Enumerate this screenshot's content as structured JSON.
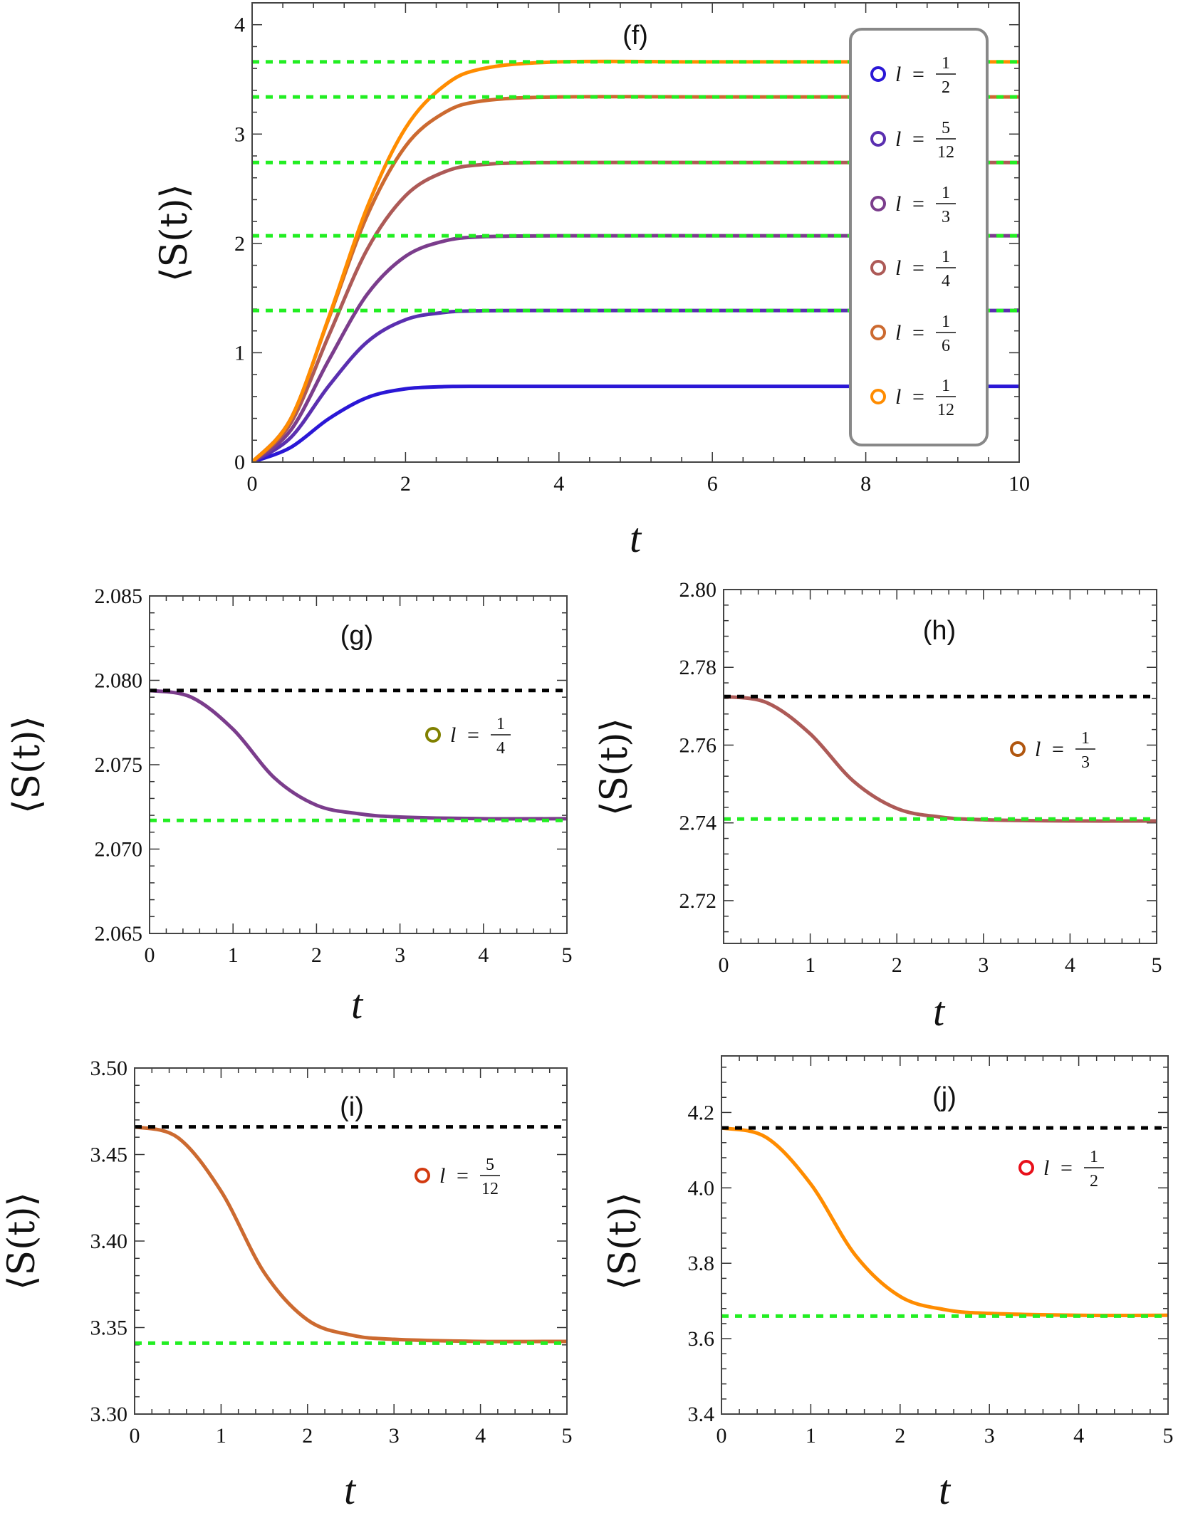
{
  "chart_data": [
    {
      "type": "line",
      "title": "(f)",
      "xlabel": "t",
      "ylabel": "⟨S(t)⟩",
      "xlim": [
        0,
        10
      ],
      "ylim": [
        0,
        4.2
      ],
      "xticks": [
        "0",
        "2",
        "4",
        "6",
        "8",
        "10"
      ],
      "yticks": [
        "0",
        "1",
        "2",
        "3",
        "4"
      ],
      "legend_placement": "right",
      "series": [
        {
          "name": "l = 1/2",
          "num": "1",
          "den": "2",
          "color": "#2a17d6",
          "x": [
            0,
            0.5,
            1,
            1.5,
            2,
            2.5,
            3,
            4,
            6,
            8,
            10
          ],
          "y": [
            0,
            0.133,
            0.397,
            0.59,
            0.67,
            0.69,
            0.693,
            0.693,
            0.693,
            0.693,
            0.693
          ]
        },
        {
          "name": "l = 5/12",
          "num": "5",
          "den": "12",
          "color": "#5a2fb0",
          "x": [
            0,
            0.5,
            1,
            1.5,
            2,
            2.5,
            3,
            4,
            6,
            8,
            10
          ],
          "y": [
            0,
            0.222,
            0.697,
            1.099,
            1.302,
            1.368,
            1.384,
            1.386,
            1.386,
            1.386,
            1.386
          ]
        },
        {
          "name": "l = 1/3",
          "num": "1",
          "den": "3",
          "color": "#7b3d8c",
          "x": [
            0,
            0.5,
            1,
            1.5,
            2,
            2.5,
            3,
            4,
            6,
            8,
            10
          ],
          "y": [
            0,
            0.288,
            0.934,
            1.534,
            1.882,
            2.021,
            2.061,
            2.07,
            2.07,
            2.07,
            2.07
          ]
        },
        {
          "name": "l = 1/4",
          "num": "1",
          "den": "4",
          "color": "#ad5a57",
          "x": [
            0,
            0.5,
            1,
            1.5,
            2,
            2.5,
            3,
            4,
            6,
            8,
            10
          ],
          "y": [
            0,
            0.352,
            1.159,
            1.945,
            2.436,
            2.652,
            2.721,
            2.74,
            2.74,
            2.74,
            2.74
          ]
        },
        {
          "name": "l = 1/6",
          "num": "1",
          "den": "6",
          "color": "#cc6a30",
          "x": [
            0,
            0.5,
            1,
            1.5,
            2,
            2.5,
            3,
            4,
            6,
            8,
            10
          ],
          "y": [
            0,
            0.392,
            1.314,
            2.255,
            2.889,
            3.193,
            3.303,
            3.34,
            3.34,
            3.34,
            3.34
          ]
        },
        {
          "name": "l = 1/12",
          "num": "1",
          "den": "12",
          "color": "#ff8c00",
          "x": [
            0,
            0.5,
            1,
            1.5,
            2,
            2.5,
            3,
            4,
            6,
            8,
            10
          ],
          "y": [
            0,
            0.389,
            1.326,
            2.331,
            3.055,
            3.44,
            3.597,
            3.66,
            3.66,
            3.66,
            3.66
          ]
        }
      ],
      "hlines": [
        {
          "y": 3.66,
          "color": "#22ee22",
          "style": "dashed"
        },
        {
          "y": 3.34,
          "color": "#22ee22",
          "style": "dashed"
        },
        {
          "y": 2.74,
          "color": "#22ee22",
          "style": "dashed"
        },
        {
          "y": 2.07,
          "color": "#22ee22",
          "style": "dashed"
        },
        {
          "y": 1.386,
          "color": "#22ee22",
          "style": "dashed"
        }
      ]
    },
    {
      "type": "line",
      "title": "(g)",
      "xlabel": "t",
      "ylabel": "⟨S(t)⟩",
      "xlim": [
        0,
        5
      ],
      "ylim": [
        2.065,
        2.085
      ],
      "xticks": [
        "0",
        "1",
        "2",
        "3",
        "4",
        "5"
      ],
      "yticks": [
        "2.065",
        "2.070",
        "2.075",
        "2.080",
        "2.085"
      ],
      "legend": [
        {
          "num": "1",
          "den": "4",
          "color": "#808000"
        }
      ],
      "series": [
        {
          "color": "#7b3d8c",
          "x": [
            0,
            0.5,
            1,
            1.5,
            2,
            2.5,
            3,
            4,
            5
          ],
          "y": [
            2.0794,
            2.079,
            2.0771,
            2.0742,
            2.0726,
            2.0721,
            2.0719,
            2.0718,
            2.0718
          ]
        }
      ],
      "hlines": [
        {
          "y": 2.0794,
          "color": "#000000",
          "style": "dashed"
        },
        {
          "y": 2.0717,
          "color": "#22ee22",
          "style": "dashed"
        }
      ]
    },
    {
      "type": "line",
      "title": "(h)",
      "xlabel": "t",
      "ylabel": "⟨S(t)⟩",
      "xlim": [
        0,
        5
      ],
      "ylim": [
        2.709,
        2.8
      ],
      "xticks": [
        "0",
        "1",
        "2",
        "3",
        "4",
        "5"
      ],
      "yticks": [
        "2.72",
        "2.74",
        "2.76",
        "2.78",
        "2.80"
      ],
      "legend": [
        {
          "num": "1",
          "den": "3",
          "color": "#b0560f"
        }
      ],
      "series": [
        {
          "color": "#ad5a57",
          "x": [
            0,
            0.5,
            1,
            1.5,
            2,
            2.5,
            3,
            4,
            5
          ],
          "y": [
            2.7725,
            2.7709,
            2.7629,
            2.7507,
            2.7437,
            2.7415,
            2.7408,
            2.7405,
            2.7405
          ]
        }
      ],
      "hlines": [
        {
          "y": 2.7725,
          "color": "#000000",
          "style": "dashed"
        },
        {
          "y": 2.741,
          "color": "#22ee22",
          "style": "dashed"
        }
      ]
    },
    {
      "type": "line",
      "title": "(i)",
      "xlabel": "t",
      "ylabel": "⟨S(t)⟩",
      "xlim": [
        0,
        5
      ],
      "ylim": [
        3.3,
        3.5
      ],
      "xticks": [
        "0",
        "1",
        "2",
        "3",
        "4",
        "5"
      ],
      "yticks": [
        "3.30",
        "3.35",
        "3.40",
        "3.45",
        "3.50"
      ],
      "legend": [
        {
          "num": "5",
          "den": "12",
          "color": "#d23a10"
        }
      ],
      "series": [
        {
          "color": "#cc6a30",
          "x": [
            0,
            0.5,
            1,
            1.5,
            2,
            2.5,
            3,
            4,
            5
          ],
          "y": [
            3.466,
            3.4598,
            3.4288,
            3.3817,
            3.3544,
            3.3457,
            3.3432,
            3.342,
            3.342
          ]
        }
      ],
      "hlines": [
        {
          "y": 3.466,
          "color": "#000000",
          "style": "dashed"
        },
        {
          "y": 3.341,
          "color": "#22ee22",
          "style": "dashed"
        }
      ]
    },
    {
      "type": "line",
      "title": "(j)",
      "xlabel": "t",
      "ylabel": "⟨S(t)⟩",
      "xlim": [
        0,
        5
      ],
      "ylim": [
        3.4,
        4.35
      ],
      "xticks": [
        "0",
        "1",
        "2",
        "3",
        "4",
        "5"
      ],
      "yticks": [
        "3.4",
        "3.6",
        "3.8",
        "4.0",
        "4.2"
      ],
      "legend": [
        {
          "num": "1",
          "den": "2",
          "color": "#e8101a"
        }
      ],
      "series": [
        {
          "color": "#ff8c00",
          "x": [
            0,
            0.5,
            1,
            1.5,
            2,
            2.5,
            3,
            4,
            5
          ],
          "y": [
            4.159,
            4.134,
            4.01,
            3.821,
            3.712,
            3.677,
            3.667,
            3.662,
            3.662
          ]
        }
      ],
      "hlines": [
        {
          "y": 4.159,
          "color": "#000000",
          "style": "dashed"
        },
        {
          "y": 3.66,
          "color": "#22ee22",
          "style": "dashed"
        }
      ]
    }
  ],
  "legend_var": "l",
  "legend_eq": "="
}
